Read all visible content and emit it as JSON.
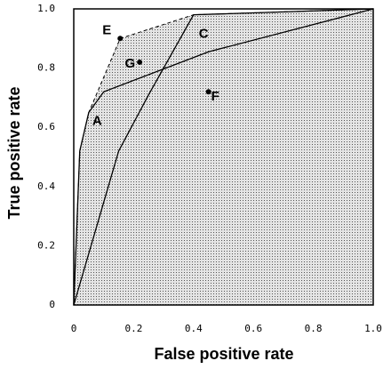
{
  "chart_data": {
    "type": "line",
    "xlabel": "False positive rate",
    "ylabel": "True positive rate",
    "xlim": [
      0,
      1
    ],
    "ylim": [
      0,
      1
    ],
    "xticks": [
      0,
      0.2,
      0.4,
      0.6,
      0.8,
      {
        "value": 1,
        "label": "1.0"
      }
    ],
    "yticks": [
      0,
      0.2,
      0.4,
      0.6,
      0.8,
      {
        "value": 1,
        "label": "1.0"
      }
    ],
    "series": [
      {
        "name": "A",
        "color": "#000000",
        "x": [
          0,
          0.02,
          0.05,
          0.1,
          0.45,
          1
        ],
        "values": [
          0,
          0.52,
          0.65,
          0.72,
          0.855,
          1
        ]
      },
      {
        "name": "C",
        "color": "#000000",
        "x": [
          0,
          0.15,
          0.25,
          0.4,
          1
        ],
        "values": [
          0,
          0.52,
          0.71,
          0.98,
          1
        ]
      }
    ],
    "hull": {
      "style": "dashed",
      "color": "#000000",
      "x": [
        0,
        0.02,
        0.05,
        0.155,
        0.4,
        1
      ],
      "values": [
        0,
        0.52,
        0.65,
        0.9,
        0.98,
        1
      ]
    },
    "points": [
      {
        "name": "E",
        "x": 0.155,
        "y": 0.9
      },
      {
        "name": "G",
        "x": 0.22,
        "y": 0.82
      },
      {
        "name": "F",
        "x": 0.45,
        "y": 0.72
      }
    ]
  }
}
